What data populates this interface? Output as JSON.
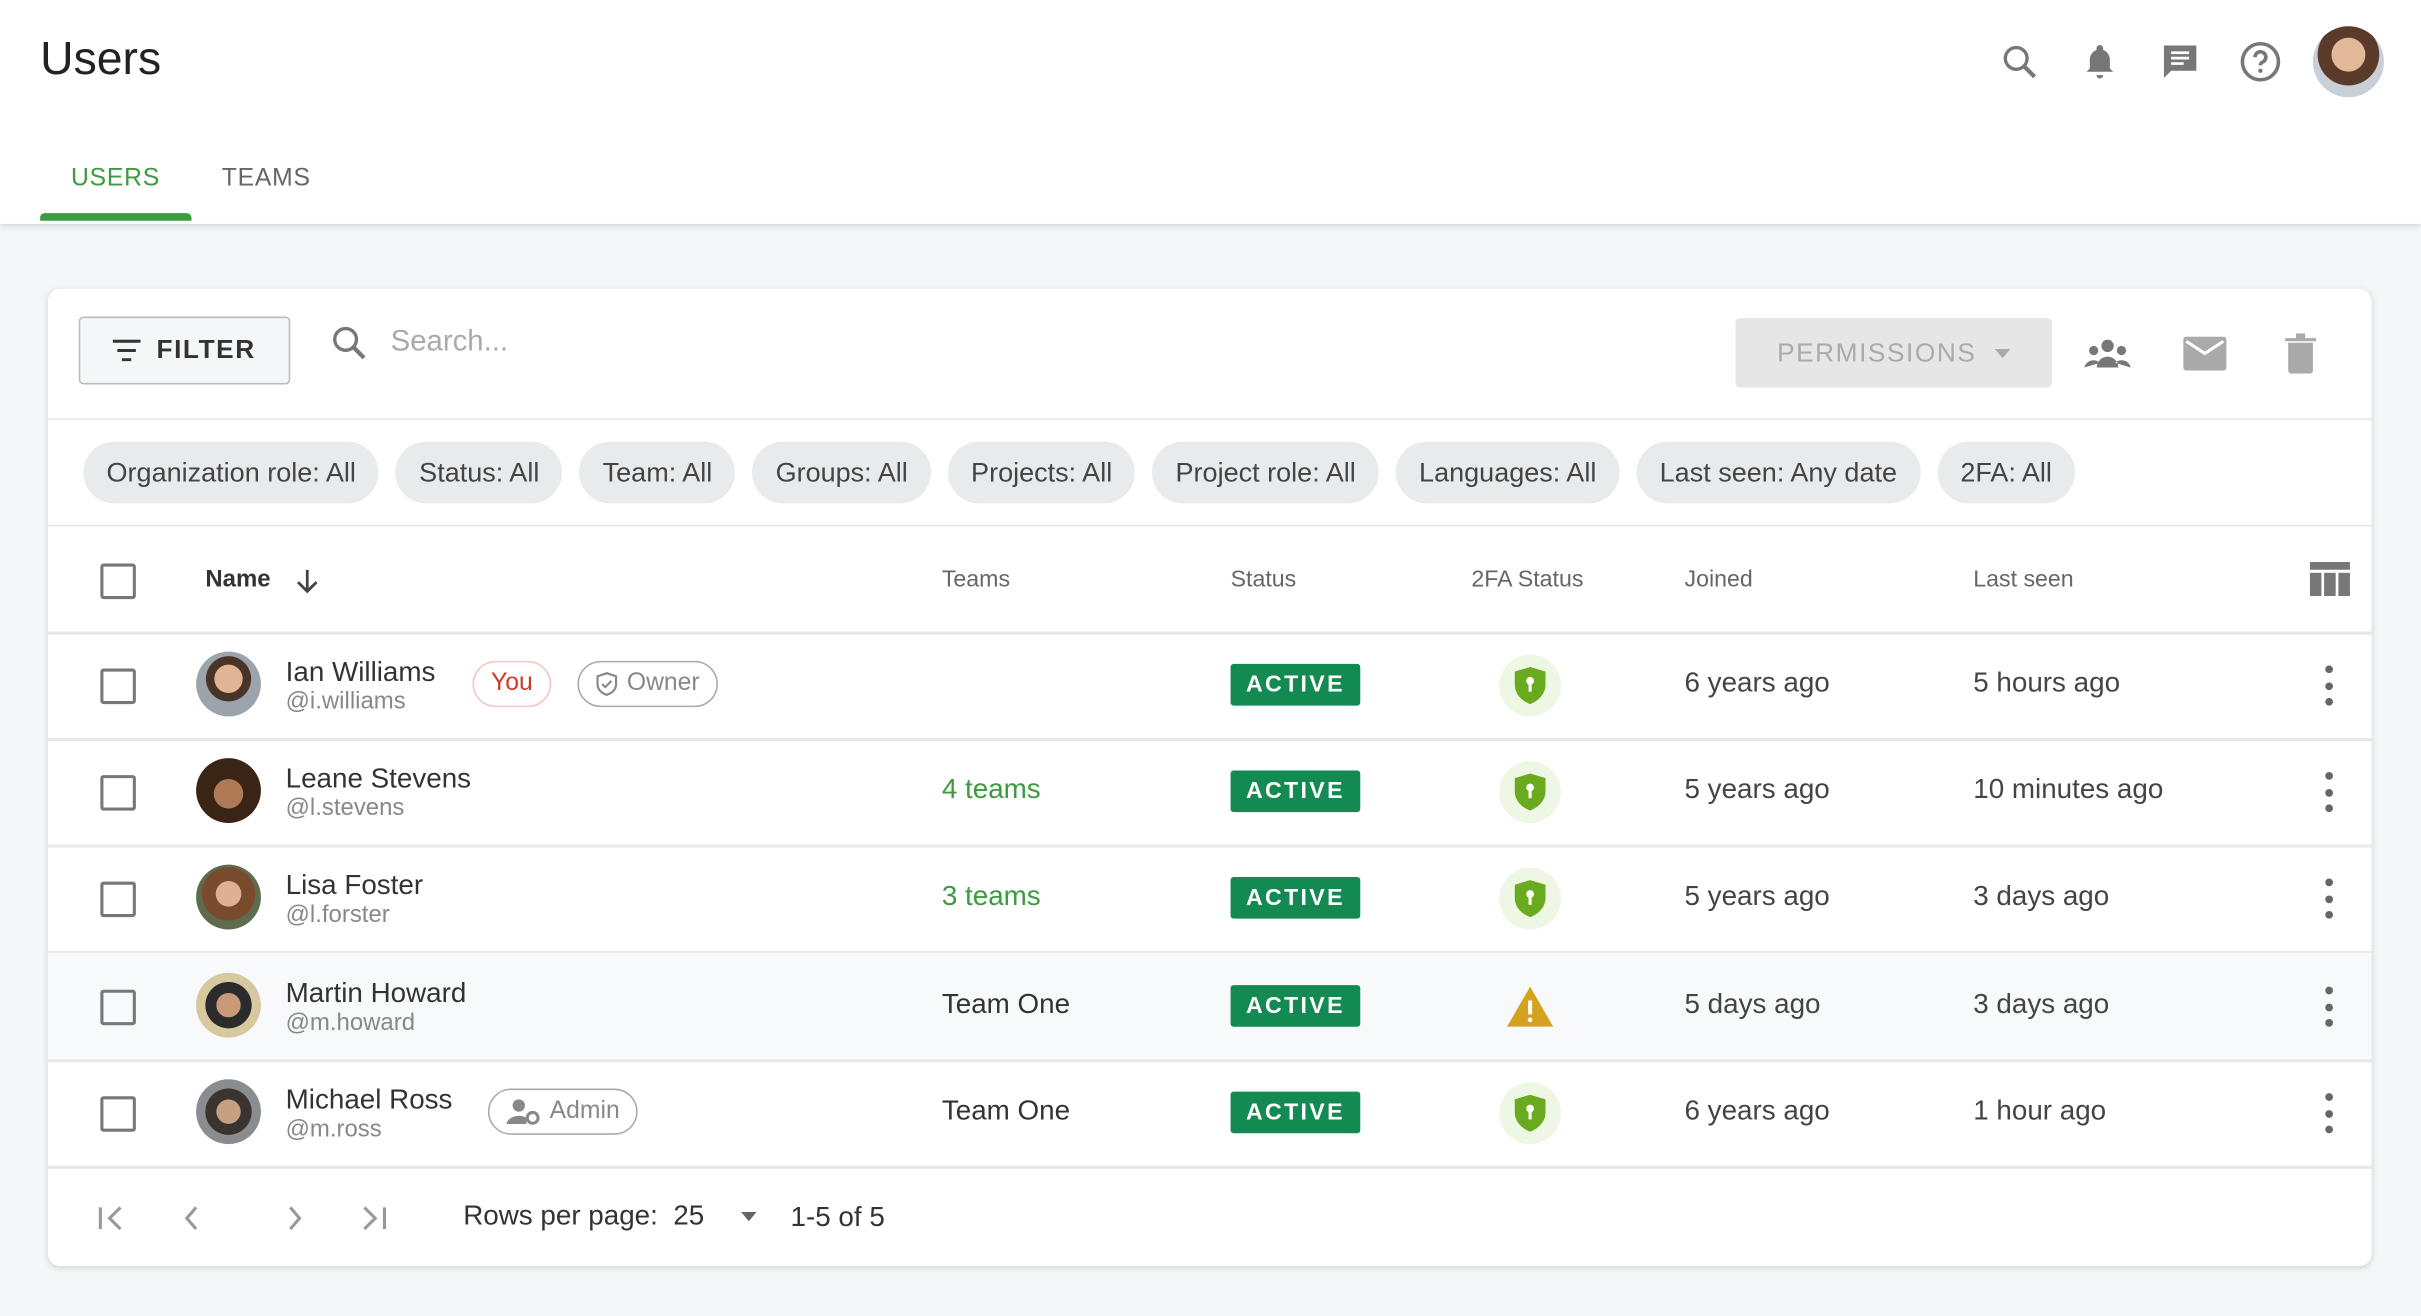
{
  "header": {
    "title": "Users",
    "icons": [
      "search-icon",
      "bell-icon",
      "chat-icon",
      "help-icon"
    ]
  },
  "tabs": [
    {
      "label": "USERS",
      "active": true
    },
    {
      "label": "TEAMS",
      "active": false
    }
  ],
  "toolbar": {
    "filter_label": "FILTER",
    "search_placeholder": "Search...",
    "search_value": "",
    "permissions_label": "PERMISSIONS"
  },
  "chips": [
    "Organization role: All",
    "Status: All",
    "Team: All",
    "Groups: All",
    "Projects: All",
    "Project role: All",
    "Languages: All",
    "Last seen: Any date",
    "2FA: All"
  ],
  "columns": {
    "name": "Name",
    "teams": "Teams",
    "status": "Status",
    "tfa": "2FA Status",
    "joined": "Joined",
    "last_seen": "Last seen"
  },
  "users": [
    {
      "name": "Ian Williams",
      "username": "@i.williams",
      "you": "You",
      "role": "Owner",
      "teams": "",
      "status": "ACTIVE",
      "tfa": "enabled",
      "joined": "6 years ago",
      "last_seen": "5 hours ago"
    },
    {
      "name": "Leane Stevens",
      "username": "@l.stevens",
      "teams": "4 teams",
      "status": "ACTIVE",
      "tfa": "enabled",
      "joined": "5 years ago",
      "last_seen": "10 minutes ago"
    },
    {
      "name": "Lisa Foster",
      "username": "@l.forster",
      "teams": "3 teams",
      "status": "ACTIVE",
      "tfa": "enabled",
      "joined": "5 years ago",
      "last_seen": "3 days ago"
    },
    {
      "name": "Martin Howard",
      "username": "@m.howard",
      "teams": "Team One",
      "status": "ACTIVE",
      "tfa": "warning",
      "joined": "5 days ago",
      "last_seen": "3 days ago"
    },
    {
      "name": "Michael Ross",
      "username": "@m.ross",
      "role": "Admin",
      "teams": "Team One",
      "status": "ACTIVE",
      "tfa": "enabled",
      "joined": "6 years ago",
      "last_seen": "1 hour ago"
    }
  ],
  "pagination": {
    "rows_label": "Rows per page:",
    "rows_value": "25",
    "range": "1-5 of 5"
  },
  "colors": {
    "accent": "#3c9a3f",
    "status_active": "#138a52",
    "tfa_ok": "#6aaa1e",
    "tfa_warn": "#d4a21f",
    "you": "#d0392c"
  }
}
